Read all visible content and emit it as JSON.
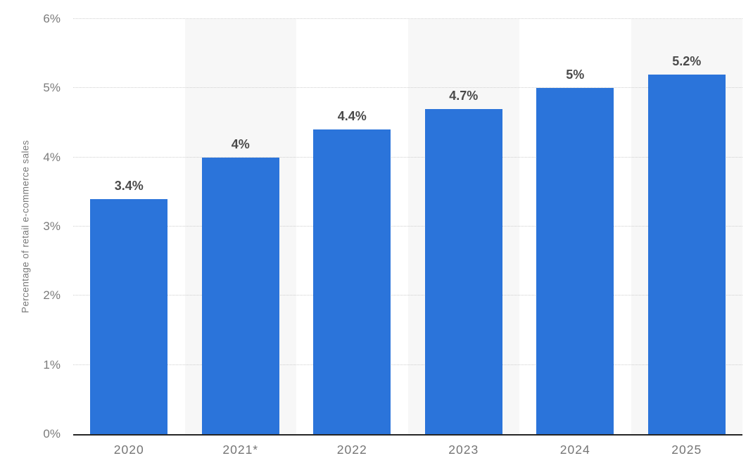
{
  "chart_data": {
    "type": "bar",
    "categories": [
      "2020",
      "2021*",
      "2022",
      "2023",
      "2024",
      "2025"
    ],
    "values": [
      3.4,
      4,
      4.4,
      4.7,
      5,
      5.2
    ],
    "value_labels": [
      "3.4%",
      "4%",
      "4.4%",
      "4.7%",
      "5%",
      "5.2%"
    ],
    "title": "",
    "xlabel": "",
    "ylabel": "Percentage of retail e-commerce sales",
    "ylim": [
      0,
      6
    ],
    "ytick_values": [
      0,
      1,
      2,
      3,
      4,
      5,
      6
    ],
    "ytick_labels": [
      "0%",
      "1%",
      "2%",
      "3%",
      "4%",
      "5%",
      "6%"
    ],
    "grid": "horizontal-dotted",
    "legend": "none",
    "colors": {
      "bar": "#2B74DA",
      "column_stripe": "#f7f7f7",
      "gridline": "#cfcfcf",
      "axis_line": "#262626",
      "value_label": "#4a4a4a",
      "tick_label": "#7b7b7b"
    }
  }
}
